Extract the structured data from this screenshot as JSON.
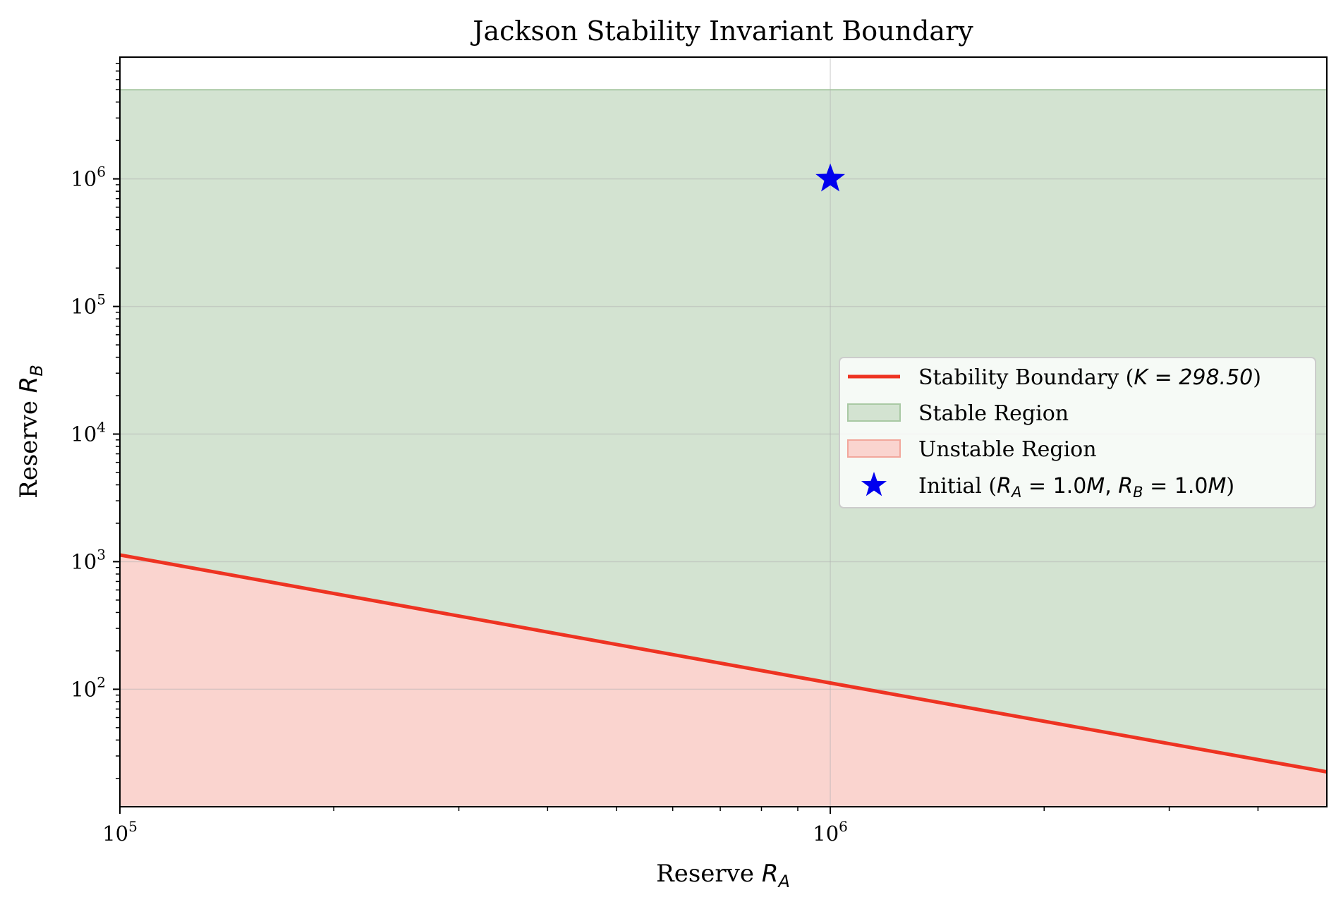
{
  "chart_data": {
    "type": "line",
    "title": "Jackson Stability Invariant Boundary",
    "xlabel": {
      "text": "Reserve ",
      "var": "R",
      "sub": "A"
    },
    "ylabel": {
      "text": "Reserve ",
      "var": "R",
      "sub": "B"
    },
    "xscale": "log",
    "yscale": "log",
    "xlim": [
      100000,
      5000000
    ],
    "ylim": [
      12,
      9000000
    ],
    "x_ticks": [
      {
        "value": 100000,
        "base": "10",
        "exp": "5"
      },
      {
        "value": 1000000,
        "base": "10",
        "exp": "6"
      }
    ],
    "y_ticks": [
      {
        "value": 100,
        "base": "10",
        "exp": "2"
      },
      {
        "value": 1000,
        "base": "10",
        "exp": "3"
      },
      {
        "value": 10000,
        "base": "10",
        "exp": "4"
      },
      {
        "value": 100000,
        "base": "10",
        "exp": "5"
      },
      {
        "value": 1000000,
        "base": "10",
        "exp": "6"
      }
    ],
    "grid": true,
    "legend_position": "center-right",
    "boundary": {
      "name": "Stability Boundary",
      "K": 298.5,
      "x": [
        100000,
        1000000,
        5000000
      ],
      "y": [
        1130,
        112,
        22.5
      ],
      "color": "#ee3322"
    },
    "stable_region": {
      "name": "Stable Region",
      "upper_y": 5000000,
      "color": "#d3e3d1",
      "edge_color": "#a9c9a4"
    },
    "unstable_region": {
      "name": "Unstable Region",
      "lower_y": 12,
      "color": "#fad4cf",
      "edge_color": "#f2a79c"
    },
    "initial_point": {
      "name": "Initial",
      "x": 1000000,
      "y": 1000000,
      "color": "#0000ee"
    },
    "legend": [
      {
        "kind": "line",
        "label": "Stability Boundary (",
        "math": "K = 298.50",
        "tail": ")"
      },
      {
        "kind": "patch-green",
        "label": "Stable Region"
      },
      {
        "kind": "patch-red",
        "label": "Unstable Region"
      },
      {
        "kind": "star",
        "label": "Initial (",
        "mathA": "R",
        "subA": "A",
        "valA": " = 1.0",
        "unitA": "M",
        "sep": ", ",
        "mathB": "R",
        "subB": "B",
        "valB": " = 1.0",
        "unitB": "M",
        "tail": ")"
      }
    ]
  }
}
